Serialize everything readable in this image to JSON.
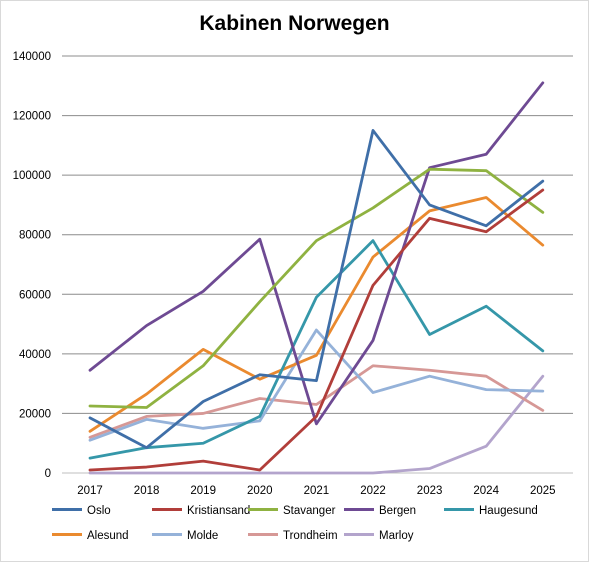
{
  "chart_data": {
    "type": "line",
    "title": "Kabinen Norwegen",
    "x": [
      "2017",
      "2018",
      "2019",
      "2020",
      "2021",
      "2022",
      "2023",
      "2024",
      "2025"
    ],
    "ylim": [
      0,
      140000
    ],
    "yticks": [
      0,
      20000,
      40000,
      60000,
      80000,
      100000,
      120000,
      140000
    ],
    "ytick_labels": [
      "0",
      "20000",
      "40000",
      "60000",
      "80000",
      "100000",
      "120000",
      "140000"
    ],
    "grid": true,
    "legend_position": "bottom",
    "series": [
      {
        "name": "Oslo",
        "color": "#3f6fa8",
        "values": [
          18500,
          8500,
          24000,
          33000,
          31000,
          115000,
          90000,
          83000,
          98000
        ]
      },
      {
        "name": "Kristiansand",
        "color": "#b13e3a",
        "values": [
          1000,
          2000,
          4000,
          1000,
          19000,
          63000,
          85500,
          81000,
          95000
        ]
      },
      {
        "name": "Stavanger",
        "color": "#8fb241",
        "values": [
          22500,
          22000,
          36000,
          57500,
          78000,
          89000,
          102000,
          101500,
          87500
        ]
      },
      {
        "name": "Bergen",
        "color": "#6e4a93",
        "values": [
          34500,
          49500,
          61000,
          78500,
          16500,
          44500,
          102500,
          107000,
          131000
        ]
      },
      {
        "name": "Haugesund",
        "color": "#3597a9",
        "values": [
          5000,
          8500,
          10000,
          19000,
          59000,
          78000,
          46500,
          56000,
          41000
        ]
      },
      {
        "name": "Alesund",
        "color": "#ea8a2f",
        "values": [
          14000,
          26500,
          41500,
          31500,
          39500,
          72500,
          88000,
          92500,
          76500
        ]
      },
      {
        "name": "Molde",
        "color": "#95b2d9",
        "values": [
          11000,
          18000,
          15000,
          17500,
          48000,
          27000,
          32500,
          28000,
          27500
        ]
      },
      {
        "name": "Trondheim",
        "color": "#d69896",
        "values": [
          12000,
          19000,
          20000,
          25000,
          23000,
          36000,
          34500,
          32500,
          21000
        ]
      },
      {
        "name": "Marloy",
        "color": "#b3a4cc",
        "values": [
          0,
          0,
          0,
          0,
          0,
          0,
          1500,
          9000,
          32500
        ]
      }
    ]
  }
}
